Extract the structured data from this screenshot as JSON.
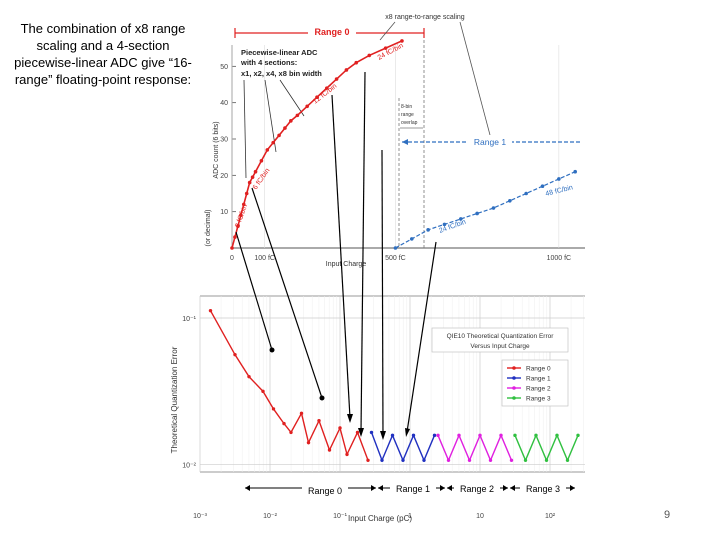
{
  "intro_text": "The combination of x8 range scaling and a 4-section piecewise-linear ADC give “16-range” floating-point response:",
  "page_number": "9",
  "chart_data": [
    {
      "type": "line",
      "title": "",
      "xlabel": "Input Charge",
      "ylabel": "ADC count (6 bits)",
      "ylabel2": "(or decimal)",
      "x_ticks": [
        "0",
        "100 fC",
        "500 fC",
        "1000 fC"
      ],
      "y_ticks": [
        "10",
        "20",
        "30",
        "40",
        "50"
      ],
      "xlim": [
        0,
        1080
      ],
      "ylim": [
        0,
        60
      ],
      "annotations": {
        "range0": "Range 0",
        "range1": "Range 1",
        "scaling": "x8 range-to-range scaling",
        "adc_box": [
          "Piecewise-linear ADC",
          "with 4 sections:",
          "x1, x2, x4, x8 bin width"
        ],
        "overlap": [
          "8-bin",
          "range",
          "overlap"
        ],
        "slope_3": "3 fC/bin",
        "slope_6": "6 fC/bin",
        "slope_12": "12 fC/bin",
        "slope_24": "24 fC/bin",
        "slope_24b": "24 fC/bin",
        "slope_48": "48 fC/bin"
      },
      "series": [
        {
          "name": "Range 0",
          "color": "#e02020",
          "x": [
            0,
            9,
            18,
            27,
            36,
            45,
            54,
            63,
            72,
            90,
            108,
            126,
            144,
            162,
            180,
            200,
            230,
            260,
            290,
            320,
            350,
            380,
            420,
            470,
            520
          ],
          "y": [
            0,
            3,
            6,
            9,
            12,
            15,
            18,
            19.5,
            21,
            24,
            27,
            29,
            31,
            33,
            35,
            36.5,
            39,
            41.5,
            44,
            46.5,
            49,
            51,
            53,
            55,
            57
          ]
        },
        {
          "name": "Range 1",
          "color": "#2f6fc0",
          "x": [
            500,
            550,
            600,
            650,
            700,
            750,
            800,
            850,
            900,
            950,
            1000,
            1050
          ],
          "y": [
            0,
            2.5,
            5,
            6.5,
            8,
            9.5,
            11,
            13,
            15,
            17,
            19,
            21
          ]
        }
      ]
    },
    {
      "type": "line",
      "title": "",
      "xlabel": "Input Charge (pC)",
      "ylabel": "Theoretical Quantization Error",
      "x_ticks": [
        "10⁻³",
        "10⁻²",
        "10⁻¹",
        "1",
        "10",
        "10²"
      ],
      "y_ticks": [
        "10⁻¹",
        "10⁻²"
      ],
      "x_log_range": [
        -3,
        2.5
      ],
      "y_log_range": [
        -2.05,
        -0.85
      ],
      "legend_title": [
        "QIE10 Theoretical Quantization Error",
        "Versus Input Charge"
      ],
      "legend_position": "top-right",
      "range_labels": [
        "Range 0",
        "Range 1",
        "Range 2",
        "Range 3"
      ],
      "series": [
        {
          "name": "Range 0",
          "color": "#e02020",
          "log_x": [
            -2.85,
            -2.5,
            -2.3,
            -2.1,
            -1.95,
            -1.8,
            -1.7,
            -1.55,
            -1.45,
            -1.3,
            -1.15,
            -1.0,
            -0.9,
            -0.75,
            -0.6
          ],
          "log_y": [
            -0.95,
            -1.25,
            -1.4,
            -1.5,
            -1.62,
            -1.72,
            -1.78,
            -1.65,
            -1.85,
            -1.7,
            -1.9,
            -1.75,
            -1.93,
            -1.78,
            -1.97
          ]
        },
        {
          "name": "Range 1",
          "color": "#2030c0",
          "log_x": [
            -0.55,
            -0.4,
            -0.25,
            -0.1,
            0.05,
            0.2,
            0.35
          ],
          "log_y": [
            -1.78,
            -1.97,
            -1.8,
            -1.97,
            -1.8,
            -1.97,
            -1.8
          ]
        },
        {
          "name": "Range 2",
          "color": "#e020e0",
          "log_x": [
            0.4,
            0.55,
            0.7,
            0.85,
            1.0,
            1.15,
            1.3,
            1.45
          ],
          "log_y": [
            -1.8,
            -1.97,
            -1.8,
            -1.97,
            -1.8,
            -1.97,
            -1.8,
            -1.97
          ]
        },
        {
          "name": "Range 3",
          "color": "#30c040",
          "log_x": [
            1.5,
            1.65,
            1.8,
            1.95,
            2.1,
            2.25,
            2.4
          ],
          "log_y": [
            -1.8,
            -1.97,
            -1.8,
            -1.97,
            -1.8,
            -1.97,
            -1.8
          ]
        }
      ]
    }
  ]
}
